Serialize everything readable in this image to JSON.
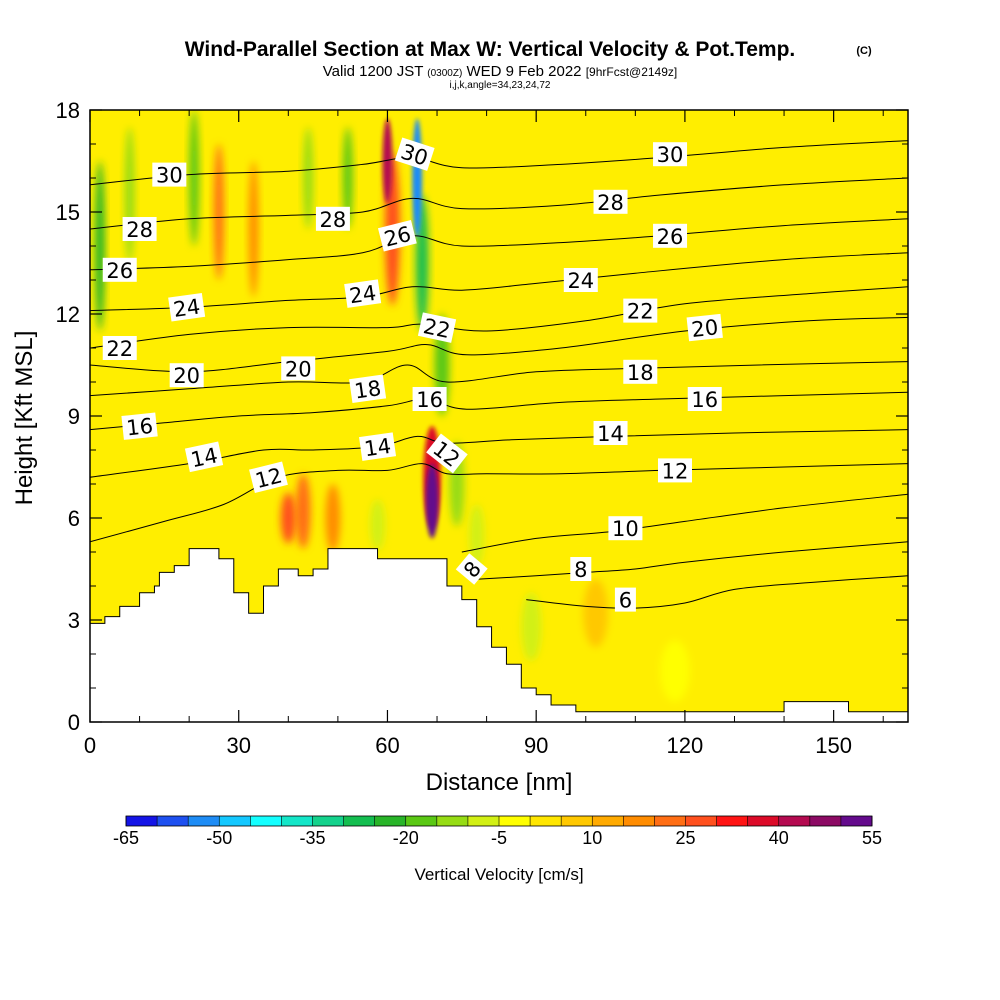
{
  "header": {
    "title": "Wind-Parallel Section at Max W: Vertical Velocity & Pot.Temp.",
    "copyright": "(C)",
    "valid_prefix": "Valid 1200 JST",
    "valid_zulu": "(0300Z)",
    "valid_date": "WED 9 Feb 2022",
    "forecast": "[9hrFcst@2149z]",
    "indices": "i,j,k,angle=34,23,24,72"
  },
  "chart_data": {
    "type": "heatmap",
    "title": "Wind-Parallel Section at Max W: Vertical Velocity & Pot.Temp.",
    "xlabel": "Distance [nm]",
    "ylabel": "Height [Kft MSL]",
    "xlim": [
      0,
      165
    ],
    "ylim": [
      0,
      18
    ],
    "xticks": [
      "0",
      "30",
      "60",
      "90",
      "120",
      "150"
    ],
    "yticks": [
      "0",
      "3",
      "6",
      "9",
      "12",
      "15",
      "18"
    ],
    "colorbar": {
      "label": "Vertical Velocity [cm/s]",
      "tick_labels": [
        "-65",
        "-50",
        "-35",
        "-20",
        "-5",
        "10",
        "25",
        "40",
        "55"
      ],
      "colors": [
        "#1414e6",
        "#1e50f0",
        "#1e8cf5",
        "#14c8ff",
        "#14ffff",
        "#14e6c8",
        "#14d28c",
        "#14be50",
        "#28b428",
        "#5ac814",
        "#96dc14",
        "#d2f014",
        "#ffff00",
        "#ffe600",
        "#ffc800",
        "#ffaa00",
        "#ff8c00",
        "#ff6e14",
        "#ff501e",
        "#ff1414",
        "#dc0a28",
        "#b40a50",
        "#8c0a64",
        "#640a8c"
      ]
    },
    "terrain": [
      [
        0,
        2.9
      ],
      [
        3,
        2.9
      ],
      [
        3,
        3.1
      ],
      [
        6,
        3.1
      ],
      [
        6,
        3.4
      ],
      [
        10,
        3.4
      ],
      [
        10,
        3.8
      ],
      [
        13,
        3.8
      ],
      [
        13,
        4.0
      ],
      [
        14,
        4.0
      ],
      [
        14,
        4.4
      ],
      [
        17,
        4.4
      ],
      [
        17,
        4.6
      ],
      [
        20,
        4.6
      ],
      [
        20,
        5.1
      ],
      [
        26,
        5.1
      ],
      [
        26,
        4.8
      ],
      [
        29,
        4.8
      ],
      [
        29,
        3.8
      ],
      [
        32,
        3.8
      ],
      [
        32,
        3.2
      ],
      [
        35,
        3.2
      ],
      [
        35,
        4.0
      ],
      [
        38,
        4.0
      ],
      [
        38,
        4.5
      ],
      [
        42,
        4.5
      ],
      [
        42,
        4.3
      ],
      [
        45,
        4.3
      ],
      [
        45,
        4.5
      ],
      [
        48,
        4.5
      ],
      [
        48,
        5.1
      ],
      [
        58,
        5.1
      ],
      [
        58,
        4.8
      ],
      [
        72,
        4.8
      ],
      [
        72,
        4.0
      ],
      [
        75,
        4.0
      ],
      [
        75,
        3.6
      ],
      [
        78,
        3.6
      ],
      [
        78,
        2.8
      ],
      [
        81,
        2.8
      ],
      [
        81,
        2.2
      ],
      [
        84,
        2.2
      ],
      [
        84,
        1.7
      ],
      [
        87,
        1.7
      ],
      [
        87,
        1.0
      ],
      [
        90,
        1.0
      ],
      [
        90,
        0.8
      ],
      [
        93,
        0.8
      ],
      [
        93,
        0.5
      ],
      [
        98,
        0.5
      ],
      [
        98,
        0.3
      ],
      [
        140,
        0.3
      ],
      [
        140,
        0.6
      ],
      [
        153,
        0.6
      ],
      [
        153,
        0.3
      ],
      [
        165,
        0.3
      ]
    ],
    "theta_contours": [
      {
        "label": "6",
        "points": [
          [
            88,
            3.6
          ],
          [
            100,
            3.4
          ],
          [
            110,
            3.35
          ],
          [
            120,
            3.5
          ],
          [
            130,
            3.9
          ],
          [
            145,
            4.1
          ],
          [
            165,
            4.3
          ]
        ]
      },
      {
        "label": "8",
        "points": [
          [
            78,
            4.2
          ],
          [
            90,
            4.3
          ],
          [
            100,
            4.4
          ],
          [
            110,
            4.5
          ],
          [
            120,
            4.7
          ],
          [
            140,
            5.0
          ],
          [
            165,
            5.3
          ]
        ]
      },
      {
        "label": "10",
        "points": [
          [
            75,
            5.0
          ],
          [
            90,
            5.4
          ],
          [
            105,
            5.6
          ],
          [
            120,
            5.9
          ],
          [
            140,
            6.3
          ],
          [
            165,
            6.7
          ]
        ]
      },
      {
        "label": "12",
        "points": [
          [
            0,
            5.3
          ],
          [
            15,
            5.9
          ],
          [
            27,
            6.4
          ],
          [
            38,
            7.2
          ],
          [
            50,
            7.4
          ],
          [
            60,
            7.4
          ],
          [
            67,
            7.6
          ],
          [
            72,
            7.3
          ],
          [
            80,
            7.3
          ],
          [
            95,
            7.3
          ],
          [
            115,
            7.4
          ],
          [
            140,
            7.5
          ],
          [
            165,
            7.6
          ]
        ]
      },
      {
        "label": "14",
        "points": [
          [
            0,
            7.2
          ],
          [
            20,
            7.6
          ],
          [
            35,
            8.0
          ],
          [
            45,
            8.0
          ],
          [
            58,
            8.1
          ],
          [
            66,
            8.4
          ],
          [
            72,
            8.2
          ],
          [
            85,
            8.3
          ],
          [
            105,
            8.4
          ],
          [
            130,
            8.5
          ],
          [
            165,
            8.6
          ]
        ]
      },
      {
        "label": "16",
        "points": [
          [
            0,
            8.6
          ],
          [
            15,
            8.8
          ],
          [
            30,
            9.0
          ],
          [
            45,
            9.1
          ],
          [
            60,
            9.3
          ],
          [
            68,
            9.5
          ],
          [
            76,
            9.2
          ],
          [
            95,
            9.4
          ],
          [
            115,
            9.5
          ],
          [
            140,
            9.6
          ],
          [
            165,
            9.7
          ]
        ]
      },
      {
        "label": "18",
        "points": [
          [
            0,
            9.6
          ],
          [
            20,
            9.8
          ],
          [
            40,
            10.0
          ],
          [
            55,
            10.0
          ],
          [
            64,
            10.5
          ],
          [
            72,
            10.0
          ],
          [
            90,
            10.3
          ],
          [
            110,
            10.4
          ],
          [
            135,
            10.5
          ],
          [
            165,
            10.6
          ]
        ]
      },
      {
        "label": "20",
        "points": [
          [
            0,
            10.5
          ],
          [
            20,
            10.3
          ],
          [
            40,
            10.6
          ],
          [
            60,
            10.9
          ],
          [
            68,
            11.1
          ],
          [
            76,
            10.8
          ],
          [
            95,
            11.0
          ],
          [
            120,
            11.5
          ],
          [
            145,
            11.8
          ],
          [
            165,
            11.9
          ]
        ]
      },
      {
        "label": "22",
        "points": [
          [
            0,
            11.0
          ],
          [
            20,
            11.4
          ],
          [
            40,
            11.6
          ],
          [
            60,
            11.6
          ],
          [
            67,
            11.7
          ],
          [
            80,
            11.5
          ],
          [
            100,
            11.8
          ],
          [
            120,
            12.3
          ],
          [
            145,
            12.6
          ],
          [
            165,
            12.8
          ]
        ]
      },
      {
        "label": "24",
        "points": [
          [
            0,
            12.1
          ],
          [
            20,
            12.2
          ],
          [
            40,
            12.4
          ],
          [
            55,
            12.5
          ],
          [
            65,
            12.8
          ],
          [
            75,
            12.7
          ],
          [
            90,
            12.9
          ],
          [
            110,
            13.2
          ],
          [
            140,
            13.6
          ],
          [
            165,
            13.8
          ]
        ]
      },
      {
        "label": "26",
        "points": [
          [
            0,
            13.3
          ],
          [
            20,
            13.4
          ],
          [
            40,
            13.6
          ],
          [
            55,
            13.8
          ],
          [
            65,
            14.3
          ],
          [
            75,
            14.0
          ],
          [
            95,
            14.1
          ],
          [
            115,
            14.3
          ],
          [
            140,
            14.6
          ],
          [
            165,
            14.8
          ]
        ]
      },
      {
        "label": "28",
        "points": [
          [
            0,
            14.5
          ],
          [
            20,
            14.8
          ],
          [
            40,
            14.9
          ],
          [
            55,
            15.0
          ],
          [
            65,
            15.4
          ],
          [
            75,
            15.1
          ],
          [
            95,
            15.2
          ],
          [
            115,
            15.5
          ],
          [
            140,
            15.8
          ],
          [
            165,
            16.0
          ]
        ]
      },
      {
        "label": "30",
        "points": [
          [
            0,
            15.8
          ],
          [
            20,
            16.1
          ],
          [
            40,
            16.2
          ],
          [
            55,
            16.4
          ],
          [
            65,
            16.6
          ],
          [
            75,
            16.3
          ],
          [
            95,
            16.4
          ],
          [
            115,
            16.6
          ],
          [
            140,
            16.9
          ],
          [
            165,
            17.1
          ]
        ]
      }
    ],
    "contour_labels": [
      {
        "text": "30",
        "x": 16,
        "y": 16.1,
        "angle": 0
      },
      {
        "text": "28",
        "x": 10,
        "y": 14.5,
        "angle": 0
      },
      {
        "text": "26",
        "x": 6,
        "y": 13.3,
        "angle": 0
      },
      {
        "text": "24",
        "x": 19.5,
        "y": 12.2,
        "angle": -8
      },
      {
        "text": "22",
        "x": 6,
        "y": 11.0,
        "angle": 0
      },
      {
        "text": "20",
        "x": 19.5,
        "y": 10.2,
        "angle": 0
      },
      {
        "text": "16",
        "x": 10,
        "y": 8.7,
        "angle": -6
      },
      {
        "text": "14",
        "x": 23,
        "y": 7.8,
        "angle": -12
      },
      {
        "text": "12",
        "x": 36,
        "y": 7.2,
        "angle": -14
      },
      {
        "text": "28",
        "x": 49,
        "y": 14.8,
        "angle": 0
      },
      {
        "text": "20",
        "x": 42,
        "y": 10.4,
        "angle": 0
      },
      {
        "text": "24",
        "x": 55,
        "y": 12.6,
        "angle": -8
      },
      {
        "text": "18",
        "x": 56,
        "y": 9.8,
        "angle": -8
      },
      {
        "text": "14",
        "x": 58,
        "y": 8.1,
        "angle": -8
      },
      {
        "text": "30",
        "x": 65.5,
        "y": 16.7,
        "angle": 18
      },
      {
        "text": "26",
        "x": 62,
        "y": 14.3,
        "angle": -14
      },
      {
        "text": "22",
        "x": 70,
        "y": 11.6,
        "angle": 12
      },
      {
        "text": "16",
        "x": 68.5,
        "y": 9.5,
        "angle": 0
      },
      {
        "text": "12",
        "x": 72,
        "y": 7.9,
        "angle": 38
      },
      {
        "text": "8",
        "x": 77,
        "y": 4.5,
        "angle": -50
      },
      {
        "text": "30",
        "x": 117,
        "y": 16.7,
        "angle": 0
      },
      {
        "text": "28",
        "x": 105,
        "y": 15.3,
        "angle": 0
      },
      {
        "text": "26",
        "x": 117,
        "y": 14.3,
        "angle": 0
      },
      {
        "text": "24",
        "x": 99,
        "y": 13.0,
        "angle": 0
      },
      {
        "text": "22",
        "x": 111,
        "y": 12.1,
        "angle": 0
      },
      {
        "text": "20",
        "x": 124,
        "y": 11.6,
        "angle": -6
      },
      {
        "text": "18",
        "x": 111,
        "y": 10.3,
        "angle": 0
      },
      {
        "text": "16",
        "x": 124,
        "y": 9.5,
        "angle": 0
      },
      {
        "text": "14",
        "x": 105,
        "y": 8.5,
        "angle": 0
      },
      {
        "text": "12",
        "x": 118,
        "y": 7.4,
        "angle": 0
      },
      {
        "text": "10",
        "x": 108,
        "y": 5.7,
        "angle": 0
      },
      {
        "text": "8",
        "x": 99,
        "y": 4.5,
        "angle": 0
      },
      {
        "text": "6",
        "x": 108,
        "y": 3.6,
        "angle": 0
      }
    ],
    "velocity_features": [
      {
        "x": 69,
        "y": 6.5,
        "w": 2.5,
        "h": 2.2,
        "value": 55
      },
      {
        "x": 69,
        "y": 7.2,
        "w": 3.5,
        "h": 3.0,
        "value": 35
      },
      {
        "x": 60,
        "y": 16.5,
        "w": 2.0,
        "h": 2.5,
        "value": 40
      },
      {
        "x": 61,
        "y": 14.5,
        "w": 3.0,
        "h": 4.5,
        "value": 25
      },
      {
        "x": 66,
        "y": 16,
        "w": 2.0,
        "h": 3.5,
        "value": -55
      },
      {
        "x": 67,
        "y": 13.5,
        "w": 2.5,
        "h": 4.0,
        "value": -30
      },
      {
        "x": 71,
        "y": 10.5,
        "w": 3.0,
        "h": 3.0,
        "value": -20
      },
      {
        "x": 74,
        "y": 7.0,
        "w": 3.0,
        "h": 2.5,
        "value": -15
      },
      {
        "x": 78,
        "y": 5.5,
        "w": 3.0,
        "h": 1.8,
        "value": -10
      },
      {
        "x": 89,
        "y": 2.8,
        "w": 4.0,
        "h": 2.0,
        "value": -8
      },
      {
        "x": 2,
        "y": 14,
        "w": 2.0,
        "h": 5.0,
        "value": -25
      },
      {
        "x": 8,
        "y": 15.5,
        "w": 2.0,
        "h": 4.0,
        "value": -15
      },
      {
        "x": 21,
        "y": 16,
        "w": 2.0,
        "h": 4.0,
        "value": -20
      },
      {
        "x": 26,
        "y": 15,
        "w": 2.0,
        "h": 4.0,
        "value": 20
      },
      {
        "x": 33,
        "y": 14.5,
        "w": 2.0,
        "h": 4.0,
        "value": 15
      },
      {
        "x": 44,
        "y": 16,
        "w": 2.0,
        "h": 3.0,
        "value": -15
      },
      {
        "x": 52,
        "y": 16,
        "w": 2.0,
        "h": 3.0,
        "value": -20
      },
      {
        "x": 43,
        "y": 6.2,
        "w": 3.0,
        "h": 2.2,
        "value": 20
      },
      {
        "x": 49,
        "y": 6.0,
        "w": 3.0,
        "h": 2.0,
        "value": 15
      },
      {
        "x": 40,
        "y": 6.0,
        "w": 3.0,
        "h": 1.5,
        "value": 25
      },
      {
        "x": 58,
        "y": 5.8,
        "w": 3.0,
        "h": 1.5,
        "value": -8
      },
      {
        "x": 102,
        "y": 3.2,
        "w": 5.0,
        "h": 2.0,
        "value": 8
      },
      {
        "x": 118,
        "y": 1.5,
        "w": 6.0,
        "h": 1.8,
        "value": -3
      }
    ]
  }
}
